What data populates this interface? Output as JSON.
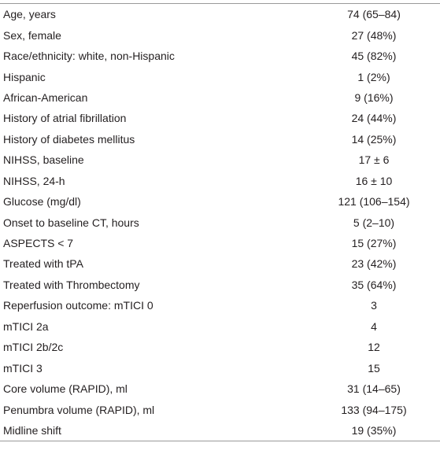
{
  "table": {
    "rows": [
      [
        "Age, years",
        "74 (65–84)"
      ],
      [
        "Sex, female",
        "27 (48%)"
      ],
      [
        "Race/ethnicity: white, non-Hispanic",
        "45 (82%)"
      ],
      [
        "Hispanic",
        "1 (2%)"
      ],
      [
        "African-American",
        "9 (16%)"
      ],
      [
        "History of atrial fibrillation",
        "24 (44%)"
      ],
      [
        "History of diabetes mellitus",
        "14 (25%)"
      ],
      [
        "NIHSS, baseline",
        "17 ± 6"
      ],
      [
        "NIHSS, 24-h",
        "16 ± 10"
      ],
      [
        "Glucose (mg/dl)",
        "121 (106–154)"
      ],
      [
        "Onset to baseline CT, hours",
        "5 (2–10)"
      ],
      [
        "ASPECTS < 7",
        "15 (27%)"
      ],
      [
        "Treated with tPA",
        "23 (42%)"
      ],
      [
        "Treated with Thrombectomy",
        "35 (64%)"
      ],
      [
        "Reperfusion outcome: mTICI 0",
        "3"
      ],
      [
        "mTICI 2a",
        "4"
      ],
      [
        "mTICI 2b/2c",
        "12"
      ],
      [
        "mTICI 3",
        "15"
      ],
      [
        "Core volume (RAPID), ml",
        "31 (14–65)"
      ],
      [
        "Penumbra volume (RAPID), ml",
        "133 (94–175)"
      ],
      [
        "Midline shift",
        "19 (35%)"
      ]
    ]
  }
}
